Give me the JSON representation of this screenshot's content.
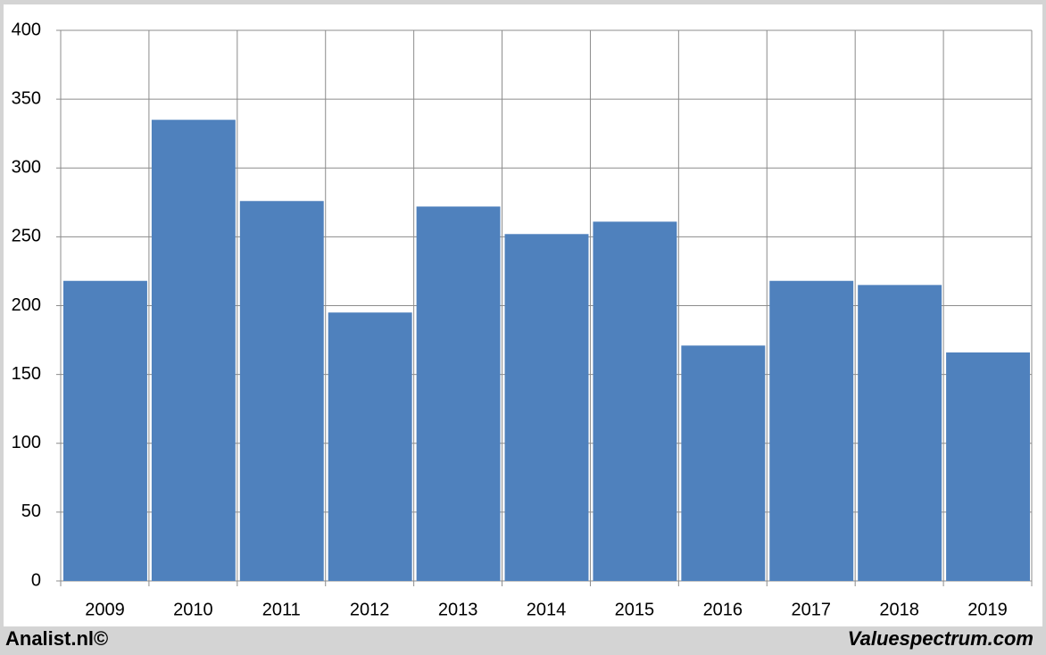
{
  "chart_data": {
    "type": "bar",
    "categories": [
      "2009",
      "2010",
      "2011",
      "2012",
      "2013",
      "2014",
      "2015",
      "2016",
      "2017",
      "2018",
      "2019"
    ],
    "values": [
      218,
      335,
      276,
      195,
      272,
      252,
      261,
      171,
      218,
      215,
      166
    ],
    "color": "#4f81bd",
    "ylim": [
      0,
      400
    ],
    "yticks": [
      0,
      50,
      100,
      150,
      200,
      250,
      300,
      350,
      400
    ],
    "grid": true,
    "source_left": "Analist.nl©",
    "source_right": "Valuespectrum.com"
  }
}
